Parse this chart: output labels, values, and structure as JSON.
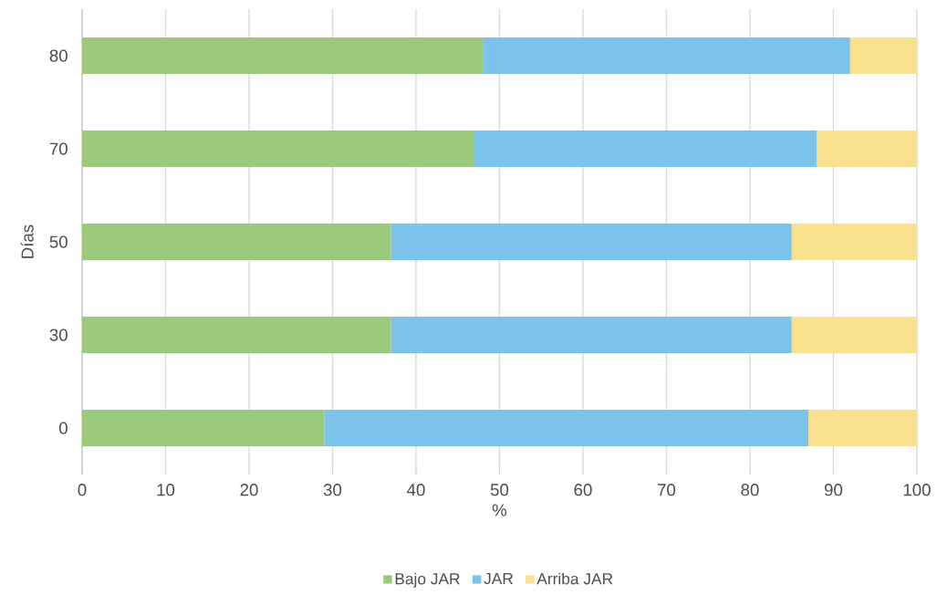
{
  "chart_data": {
    "type": "bar",
    "orientation": "horizontal",
    "stacked": true,
    "xlabel": "%",
    "ylabel": "Días",
    "categories": [
      "80",
      "70",
      "50",
      "30",
      "0"
    ],
    "series": [
      {
        "name": "Bajo JAR",
        "color": "#9bc97b",
        "values": [
          48,
          47,
          37,
          37,
          29
        ]
      },
      {
        "name": "JAR",
        "color": "#7ac3ea",
        "values": [
          44,
          41,
          48,
          48,
          58
        ]
      },
      {
        "name": "Arriba JAR",
        "color": "#f9e08f",
        "values": [
          8,
          12,
          15,
          15,
          13
        ]
      }
    ],
    "xlim": [
      0,
      100
    ],
    "xticks": [
      0,
      10,
      20,
      30,
      40,
      50,
      60,
      70,
      80,
      90,
      100
    ],
    "grid": "x",
    "legend": "bottom"
  }
}
